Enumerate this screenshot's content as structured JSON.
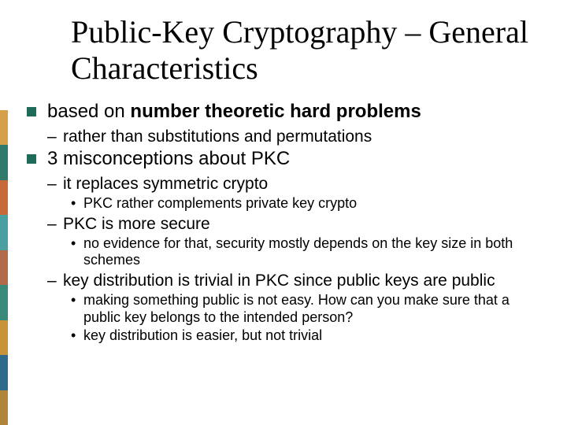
{
  "stripe_colors": [
    "#d6a04a",
    "#2f7a6a",
    "#c76a3a",
    "#4aa0a0",
    "#b06a4a",
    "#3a8a7a",
    "#c7943a",
    "#2f6a8a",
    "#b0843a"
  ],
  "title": "Public-Key Cryptography – General Characteristics",
  "items": [
    {
      "text_parts": [
        {
          "text": "based on ",
          "bold": false
        },
        {
          "text": "number theoretic hard problems",
          "bold": true
        }
      ],
      "sub": [
        {
          "text": "rather than substitutions and permutations",
          "sub": []
        }
      ]
    },
    {
      "text_parts": [
        {
          "text": "3 misconceptions about PKC",
          "bold": false
        }
      ],
      "sub": [
        {
          "text": "it replaces symmetric crypto",
          "sub": [
            {
              "text": "PKC rather complements private key crypto"
            }
          ]
        },
        {
          "text": "PKC is more secure",
          "sub": [
            {
              "text": "no evidence for that, security mostly depends on the key size in both schemes"
            }
          ]
        },
        {
          "text": "key distribution is trivial in PKC since public keys are public",
          "sub": [
            {
              "text": "making something public is not easy. How can you make sure that a public key belongs to the intended person?"
            },
            {
              "text": "key distribution is easier, but not trivial"
            }
          ]
        }
      ]
    }
  ]
}
